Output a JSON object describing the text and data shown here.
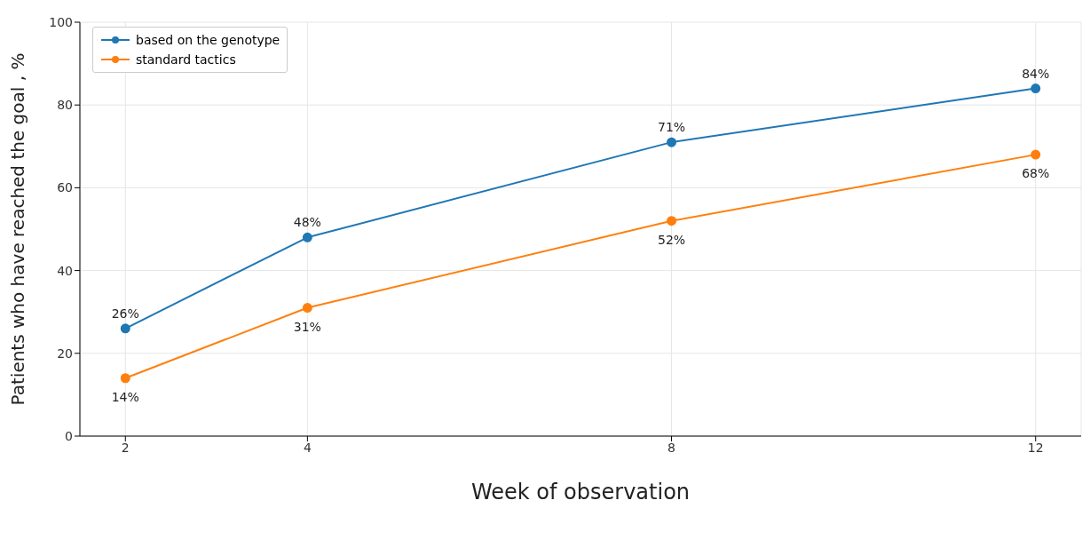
{
  "chart_data": {
    "type": "line",
    "xlabel": "Week of observation",
    "ylabel": "Patients who have reached the goal , %",
    "x": [
      2,
      4,
      8,
      12
    ],
    "series": [
      {
        "name": "based on the genotype",
        "color": "#1f77b4",
        "values": [
          26,
          48,
          71,
          84
        ],
        "value_labels": [
          "26%",
          "48%",
          "71%",
          "84%"
        ]
      },
      {
        "name": "standard tactics",
        "color": "#ff7f0e",
        "values": [
          14,
          31,
          52,
          68
        ],
        "value_labels": [
          "14%",
          "31%",
          "52%",
          "68%"
        ]
      }
    ],
    "xlim": [
      1.5,
      12.5
    ],
    "xticks": [
      2,
      4,
      8,
      12
    ],
    "ylim": [
      0,
      100
    ],
    "yticks": [
      0,
      20,
      40,
      60,
      80,
      100
    ],
    "grid": true,
    "legend": "top left",
    "marker": "circle",
    "line_style": "solid"
  }
}
